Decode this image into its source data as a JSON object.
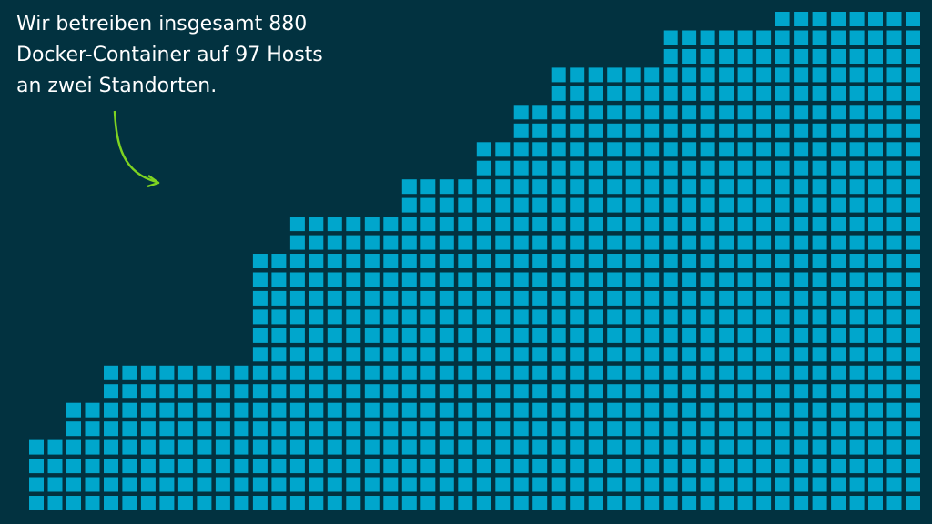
{
  "caption": {
    "lines": [
      "Wir betreiben insgesamt 880",
      "Docker-Container auf 97 Hosts",
      "an zwei Standorten."
    ]
  },
  "grid": {
    "color": "#00a6cc",
    "column_heights": [
      4,
      4,
      6,
      6,
      8,
      8,
      8,
      8,
      8,
      8,
      8,
      8,
      14,
      14,
      16,
      16,
      16,
      16,
      16,
      16,
      18,
      18,
      18,
      18,
      20,
      20,
      22,
      22,
      24,
      24,
      24,
      24,
      24,
      24,
      26,
      26,
      26,
      26,
      26,
      26,
      27,
      27,
      27,
      27,
      27,
      27,
      27,
      27
    ]
  }
}
